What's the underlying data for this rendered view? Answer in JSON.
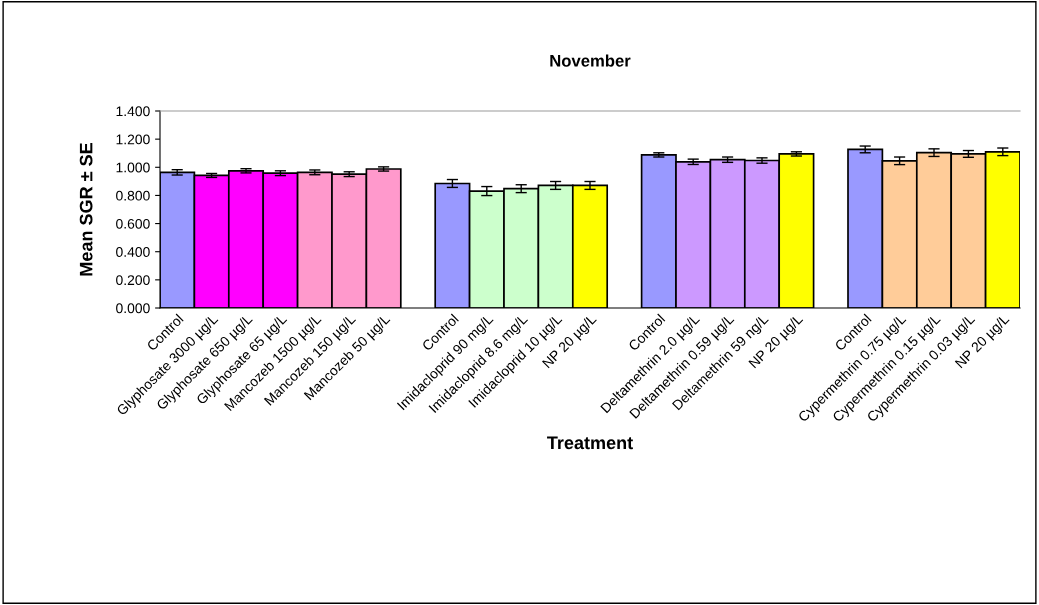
{
  "chart_data": {
    "type": "bar",
    "title": "November",
    "xlabel": "Treatment",
    "ylabel": "Mean SGR ± SE",
    "categories": [
      "Control",
      "Glyphosate 3000 µg/L",
      "Glyphosate 650 µg/L",
      "Glyphosate 65 µg/L",
      "Mancozeb 1500 µg/L",
      "Mancozeb 150 µg/L",
      "Mancozeb 50 µg/L",
      null,
      "Control",
      "Imidacloprid 90 mg/L",
      "Imidacloprid 8.6 mg/L",
      "Imidacloprid 10 µg/L",
      "NP 20 µg/L",
      null,
      "Control",
      "Deltamethrin 2.0 µg/L",
      "Deltamethrin 0.59 µg/L",
      "Deltamethrin 59 ng/L",
      "NP 20 µg/L",
      null,
      "Control",
      "Cypermethrin 0.75 µg/L",
      "Cypermethrin 0.15 µg/L",
      "Cypermethrin 0.03 µg/L",
      "NP 20 µg/L"
    ],
    "values": [
      0.964,
      0.942,
      0.975,
      0.958,
      0.964,
      0.951,
      0.988,
      null,
      0.885,
      0.831,
      0.848,
      0.871,
      0.871,
      null,
      1.088,
      1.039,
      1.054,
      1.048,
      1.095,
      null,
      1.127,
      1.046,
      1.104,
      1.095,
      1.11
    ],
    "errors": [
      0.019,
      0.014,
      0.015,
      0.017,
      0.017,
      0.017,
      0.015,
      null,
      0.028,
      0.032,
      0.028,
      0.028,
      0.028,
      null,
      0.015,
      0.019,
      0.019,
      0.019,
      0.015,
      null,
      0.024,
      0.027,
      0.027,
      0.024,
      0.027
    ],
    "colors": [
      "#9999ff",
      "#ff00ff",
      "#ff00ff",
      "#ff00ff",
      "#ff99cc",
      "#ff99cc",
      "#ff99cc",
      null,
      "#9999ff",
      "#ccffcc",
      "#ccffcc",
      "#ccffcc",
      "#ffff00",
      null,
      "#9999ff",
      "#cc99ff",
      "#cc99ff",
      "#cc99ff",
      "#ffff00",
      null,
      "#9999ff",
      "#ffcc99",
      "#ffcc99",
      "#ffcc99",
      "#ffff00"
    ],
    "ylim": [
      0,
      1.4
    ],
    "yticks": [
      {
        "value": 0,
        "label": "0.000"
      },
      {
        "value": 0.2,
        "label": "0.200"
      },
      {
        "value": 0.4,
        "label": "0.400"
      },
      {
        "value": 0.6,
        "label": "0.600"
      },
      {
        "value": 0.8,
        "label": "0.800"
      },
      {
        "value": 1.0,
        "label": "1.000"
      },
      {
        "value": 1.2,
        "label": "1.200"
      },
      {
        "value": 1.4,
        "label": "1.400"
      }
    ],
    "grid": false,
    "legend": false
  }
}
